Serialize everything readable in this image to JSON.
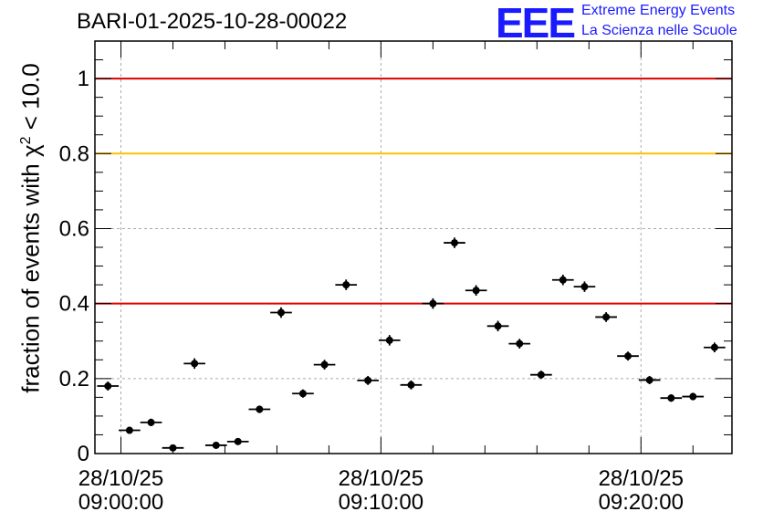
{
  "title": "BARI-01-2025-10-28-00022",
  "logo": {
    "mark": "EEE",
    "line1": "Extreme Energy Events",
    "line2": "La Scienza nelle Scuole"
  },
  "chart_data": {
    "type": "scatter",
    "ylabel_prefix": "fraction of events with ",
    "ylabel_symbol": "χ",
    "ylabel_sup": "2",
    "ylabel_suffix": " < 10.0",
    "x_unit": "minutes since 09:00:00 on 28/10/25",
    "xlim": [
      -1.0,
      23.5
    ],
    "ylim": [
      0,
      1.1
    ],
    "y_ticks": [
      {
        "value": 0,
        "label": "0"
      },
      {
        "value": 0.2,
        "label": "0.2"
      },
      {
        "value": 0.4,
        "label": "0.4"
      },
      {
        "value": 0.6,
        "label": "0.6"
      },
      {
        "value": 0.8,
        "label": "0.8"
      },
      {
        "value": 1.0,
        "label": "1"
      }
    ],
    "x_ticks": [
      {
        "value": 0,
        "line1": "28/10/25",
        "line2": "09:00:00"
      },
      {
        "value": 10,
        "line1": "28/10/25",
        "line2": "09:10:00"
      },
      {
        "value": 20,
        "line1": "28/10/25",
        "line2": "09:20:00"
      }
    ],
    "grid": true,
    "reference_lines": [
      {
        "y": 1.0,
        "color": "#dd0000"
      },
      {
        "y": 0.8,
        "color": "#ffc000"
      },
      {
        "y": 0.4,
        "color": "#dd0000"
      }
    ],
    "bin_width": 0.83,
    "points": [
      {
        "x": -0.5,
        "y": 0.18,
        "err": 0.012
      },
      {
        "x": 0.33,
        "y": 0.062,
        "err": 0.008
      },
      {
        "x": 1.16,
        "y": 0.083,
        "err": 0.01
      },
      {
        "x": 2.0,
        "y": 0.015,
        "err": 0.005
      },
      {
        "x": 2.83,
        "y": 0.24,
        "err": 0.014
      },
      {
        "x": 3.66,
        "y": 0.022,
        "err": 0.005
      },
      {
        "x": 4.5,
        "y": 0.032,
        "err": 0.006
      },
      {
        "x": 5.33,
        "y": 0.118,
        "err": 0.01
      },
      {
        "x": 6.16,
        "y": 0.376,
        "err": 0.014
      },
      {
        "x": 7.0,
        "y": 0.16,
        "err": 0.011
      },
      {
        "x": 7.83,
        "y": 0.237,
        "err": 0.013
      },
      {
        "x": 8.66,
        "y": 0.45,
        "err": 0.014
      },
      {
        "x": 9.5,
        "y": 0.195,
        "err": 0.012
      },
      {
        "x": 10.33,
        "y": 0.302,
        "err": 0.014
      },
      {
        "x": 11.16,
        "y": 0.183,
        "err": 0.012
      },
      {
        "x": 12.0,
        "y": 0.4,
        "err": 0.014
      },
      {
        "x": 12.83,
        "y": 0.562,
        "err": 0.014
      },
      {
        "x": 13.66,
        "y": 0.435,
        "err": 0.014
      },
      {
        "x": 14.5,
        "y": 0.34,
        "err": 0.014
      },
      {
        "x": 15.33,
        "y": 0.293,
        "err": 0.013
      },
      {
        "x": 16.16,
        "y": 0.21,
        "err": 0.011
      },
      {
        "x": 17.0,
        "y": 0.463,
        "err": 0.014
      },
      {
        "x": 17.83,
        "y": 0.445,
        "err": 0.014
      },
      {
        "x": 18.66,
        "y": 0.364,
        "err": 0.013
      },
      {
        "x": 19.5,
        "y": 0.26,
        "err": 0.012
      },
      {
        "x": 20.33,
        "y": 0.196,
        "err": 0.011
      },
      {
        "x": 21.16,
        "y": 0.148,
        "err": 0.01
      },
      {
        "x": 22.0,
        "y": 0.152,
        "err": 0.01
      },
      {
        "x": 22.83,
        "y": 0.283,
        "err": 0.013
      }
    ]
  }
}
